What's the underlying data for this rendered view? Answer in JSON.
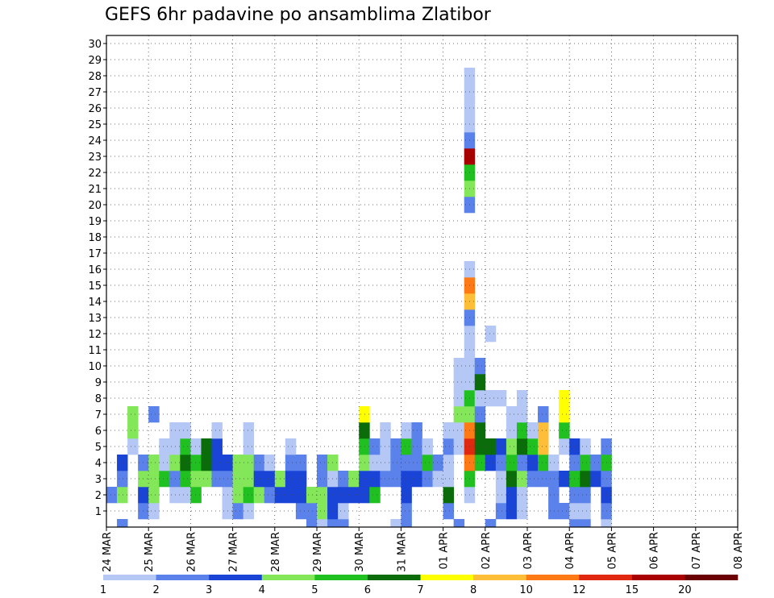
{
  "chart_data": {
    "type": "heatmap",
    "title": "GEFS 6hr padavine po ansamblima Zlatibor",
    "x_tick_labels": [
      "24 MAR",
      "25 MAR",
      "26 MAR",
      "27 MAR",
      "28 MAR",
      "29 MAR",
      "30 MAR",
      "31 MAR",
      "01 APR",
      "02 APR",
      "03 APR",
      "04 APR",
      "05 APR",
      "06 APR",
      "07 APR",
      "08 APR"
    ],
    "y_tick_labels": [
      "1",
      "2",
      "3",
      "4",
      "5",
      "6",
      "7",
      "8",
      "9",
      "10",
      "11",
      "12",
      "13",
      "14",
      "15",
      "16",
      "17",
      "18",
      "19",
      "20",
      "21",
      "22",
      "23",
      "24",
      "25",
      "26",
      "27",
      "28",
      "29",
      "30"
    ],
    "members": 30,
    "steps_per_day": 4,
    "grid": true,
    "colorbar": {
      "labels": [
        "1",
        "2",
        "3",
        "4",
        "5",
        "6",
        "7",
        "8",
        "10",
        "12",
        "15",
        "20"
      ],
      "colors": [
        "#b5c8f5",
        "#5b82ea",
        "#1a44d6",
        "#84e75a",
        "#20c020",
        "#0a6d0a",
        "#ffff00",
        "#ffbe38",
        "#ff7a14",
        "#e02810",
        "#a80000",
        "#6a0000"
      ]
    },
    "cells": [
      [
        0,
        2,
        1
      ],
      [
        1,
        0,
        1
      ],
      [
        1,
        2,
        3
      ],
      [
        1,
        3,
        1
      ],
      [
        1,
        4,
        2
      ],
      [
        2,
        5,
        0
      ],
      [
        2,
        6,
        3
      ],
      [
        2,
        7,
        3
      ],
      [
        3,
        1,
        1
      ],
      [
        3,
        2,
        2
      ],
      [
        3,
        3,
        3
      ],
      [
        3,
        4,
        1
      ],
      [
        4,
        1,
        0
      ],
      [
        4,
        2,
        3
      ],
      [
        4,
        3,
        3
      ],
      [
        4,
        4,
        3
      ],
      [
        4,
        7,
        1
      ],
      [
        5,
        3,
        4
      ],
      [
        5,
        4,
        0
      ],
      [
        5,
        5,
        0
      ],
      [
        6,
        2,
        0
      ],
      [
        6,
        3,
        1
      ],
      [
        6,
        4,
        3
      ],
      [
        6,
        5,
        0
      ],
      [
        6,
        6,
        0
      ],
      [
        7,
        2,
        0
      ],
      [
        7,
        3,
        4
      ],
      [
        7,
        4,
        5
      ],
      [
        7,
        5,
        4
      ],
      [
        7,
        6,
        0
      ],
      [
        8,
        2,
        4
      ],
      [
        8,
        3,
        3
      ],
      [
        8,
        4,
        4
      ],
      [
        8,
        5,
        0
      ],
      [
        9,
        3,
        3
      ],
      [
        9,
        4,
        5
      ],
      [
        9,
        5,
        5
      ],
      [
        10,
        3,
        1
      ],
      [
        10,
        4,
        2
      ],
      [
        10,
        5,
        2
      ],
      [
        10,
        6,
        0
      ],
      [
        11,
        1,
        0
      ],
      [
        11,
        2,
        0
      ],
      [
        11,
        3,
        1
      ],
      [
        11,
        4,
        2
      ],
      [
        12,
        1,
        1
      ],
      [
        12,
        2,
        3
      ],
      [
        12,
        3,
        3
      ],
      [
        12,
        4,
        3
      ],
      [
        13,
        1,
        0
      ],
      [
        13,
        2,
        4
      ],
      [
        13,
        3,
        3
      ],
      [
        13,
        4,
        3
      ],
      [
        13,
        5,
        0
      ],
      [
        13,
        6,
        0
      ],
      [
        14,
        2,
        3
      ],
      [
        14,
        3,
        2
      ],
      [
        14,
        4,
        1
      ],
      [
        15,
        2,
        1
      ],
      [
        15,
        3,
        2
      ],
      [
        15,
        4,
        0
      ],
      [
        16,
        2,
        2
      ],
      [
        16,
        3,
        3
      ],
      [
        17,
        2,
        2
      ],
      [
        17,
        3,
        2
      ],
      [
        17,
        4,
        1
      ],
      [
        17,
        5,
        0
      ],
      [
        18,
        1,
        1
      ],
      [
        18,
        2,
        2
      ],
      [
        18,
        3,
        2
      ],
      [
        18,
        4,
        1
      ],
      [
        19,
        0,
        1
      ],
      [
        19,
        1,
        1
      ],
      [
        19,
        2,
        3
      ],
      [
        20,
        0,
        0
      ],
      [
        20,
        1,
        3
      ],
      [
        20,
        2,
        3
      ],
      [
        20,
        3,
        1
      ],
      [
        20,
        4,
        1
      ],
      [
        21,
        0,
        1
      ],
      [
        21,
        1,
        2
      ],
      [
        21,
        2,
        2
      ],
      [
        21,
        3,
        0
      ],
      [
        21,
        4,
        3
      ],
      [
        22,
        0,
        1
      ],
      [
        22,
        1,
        0
      ],
      [
        22,
        2,
        2
      ],
      [
        22,
        3,
        1
      ],
      [
        23,
        2,
        2
      ],
      [
        23,
        3,
        3
      ],
      [
        24,
        2,
        2
      ],
      [
        24,
        3,
        2
      ],
      [
        24,
        4,
        3
      ],
      [
        24,
        5,
        4
      ],
      [
        24,
        6,
        5
      ],
      [
        24,
        7,
        6
      ],
      [
        25,
        2,
        4
      ],
      [
        25,
        3,
        2
      ],
      [
        25,
        4,
        0
      ],
      [
        25,
        5,
        1
      ],
      [
        26,
        3,
        1
      ],
      [
        26,
        4,
        0
      ],
      [
        26,
        5,
        0
      ],
      [
        26,
        6,
        0
      ],
      [
        27,
        0,
        0
      ],
      [
        27,
        3,
        1
      ],
      [
        27,
        4,
        1
      ],
      [
        27,
        5,
        1
      ],
      [
        28,
        0,
        1
      ],
      [
        28,
        1,
        1
      ],
      [
        28,
        2,
        2
      ],
      [
        28,
        3,
        2
      ],
      [
        28,
        4,
        1
      ],
      [
        28,
        5,
        4
      ],
      [
        28,
        6,
        0
      ],
      [
        29,
        3,
        2
      ],
      [
        29,
        4,
        1
      ],
      [
        29,
        5,
        1
      ],
      [
        29,
        6,
        1
      ],
      [
        30,
        3,
        1
      ],
      [
        30,
        4,
        4
      ],
      [
        30,
        5,
        0
      ],
      [
        31,
        3,
        0
      ],
      [
        31,
        4,
        1
      ],
      [
        32,
        1,
        1
      ],
      [
        32,
        2,
        5
      ],
      [
        32,
        3,
        0
      ],
      [
        32,
        4,
        0
      ],
      [
        32,
        5,
        1
      ],
      [
        32,
        6,
        0
      ],
      [
        33,
        0,
        1
      ],
      [
        33,
        5,
        0
      ],
      [
        33,
        6,
        0
      ],
      [
        33,
        7,
        3
      ],
      [
        33,
        8,
        0
      ],
      [
        33,
        9,
        0
      ],
      [
        33,
        10,
        0
      ],
      [
        34,
        2,
        0
      ],
      [
        34,
        3,
        4
      ],
      [
        34,
        4,
        8
      ],
      [
        34,
        5,
        9
      ],
      [
        34,
        6,
        8
      ],
      [
        34,
        7,
        3
      ],
      [
        34,
        8,
        4
      ],
      [
        34,
        9,
        0
      ],
      [
        34,
        10,
        0
      ],
      [
        34,
        11,
        0
      ],
      [
        34,
        12,
        0
      ],
      [
        34,
        13,
        1
      ],
      [
        34,
        14,
        7
      ],
      [
        34,
        15,
        8
      ],
      [
        34,
        16,
        0
      ],
      [
        34,
        20,
        1
      ],
      [
        34,
        21,
        3
      ],
      [
        34,
        22,
        4
      ],
      [
        34,
        23,
        10
      ],
      [
        34,
        24,
        1
      ],
      [
        34,
        25,
        0
      ],
      [
        34,
        26,
        0
      ],
      [
        34,
        27,
        0
      ],
      [
        34,
        28,
        0
      ],
      [
        35,
        4,
        4
      ],
      [
        35,
        5,
        5
      ],
      [
        35,
        6,
        5
      ],
      [
        35,
        7,
        1
      ],
      [
        35,
        8,
        0
      ],
      [
        35,
        9,
        5
      ],
      [
        35,
        10,
        1
      ],
      [
        36,
        0,
        1
      ],
      [
        36,
        4,
        2
      ],
      [
        36,
        5,
        5
      ],
      [
        36,
        8,
        0
      ],
      [
        36,
        12,
        0
      ],
      [
        37,
        1,
        1
      ],
      [
        37,
        2,
        0
      ],
      [
        37,
        3,
        0
      ],
      [
        37,
        4,
        1
      ],
      [
        37,
        5,
        2
      ],
      [
        37,
        8,
        0
      ],
      [
        38,
        1,
        2
      ],
      [
        38,
        2,
        2
      ],
      [
        38,
        3,
        5
      ],
      [
        38,
        4,
        4
      ],
      [
        38,
        5,
        3
      ],
      [
        38,
        6,
        0
      ],
      [
        38,
        7,
        0
      ],
      [
        39,
        1,
        0
      ],
      [
        39,
        2,
        0
      ],
      [
        39,
        3,
        3
      ],
      [
        39,
        4,
        1
      ],
      [
        39,
        5,
        5
      ],
      [
        39,
        6,
        4
      ],
      [
        39,
        7,
        0
      ],
      [
        39,
        8,
        0
      ],
      [
        40,
        3,
        1
      ],
      [
        40,
        4,
        2
      ],
      [
        40,
        5,
        4
      ],
      [
        40,
        6,
        0
      ],
      [
        41,
        3,
        1
      ],
      [
        41,
        4,
        4
      ],
      [
        41,
        5,
        7
      ],
      [
        41,
        6,
        7
      ],
      [
        41,
        7,
        1
      ],
      [
        42,
        1,
        1
      ],
      [
        42,
        2,
        1
      ],
      [
        42,
        3,
        1
      ],
      [
        42,
        4,
        0
      ],
      [
        43,
        1,
        1
      ],
      [
        43,
        3,
        2
      ],
      [
        43,
        5,
        0
      ],
      [
        43,
        6,
        4
      ],
      [
        43,
        7,
        6
      ],
      [
        43,
        8,
        6
      ],
      [
        44,
        0,
        1
      ],
      [
        44,
        1,
        0
      ],
      [
        44,
        2,
        1
      ],
      [
        44,
        3,
        4
      ],
      [
        44,
        4,
        1
      ],
      [
        44,
        5,
        2
      ],
      [
        45,
        0,
        1
      ],
      [
        45,
        1,
        0
      ],
      [
        45,
        2,
        1
      ],
      [
        45,
        3,
        5
      ],
      [
        45,
        4,
        4
      ],
      [
        45,
        5,
        0
      ],
      [
        46,
        3,
        2
      ],
      [
        46,
        4,
        1
      ],
      [
        47,
        0,
        0
      ],
      [
        47,
        1,
        1
      ],
      [
        47,
        2,
        2
      ],
      [
        47,
        3,
        1
      ],
      [
        47,
        4,
        4
      ],
      [
        47,
        5,
        1
      ]
    ]
  }
}
